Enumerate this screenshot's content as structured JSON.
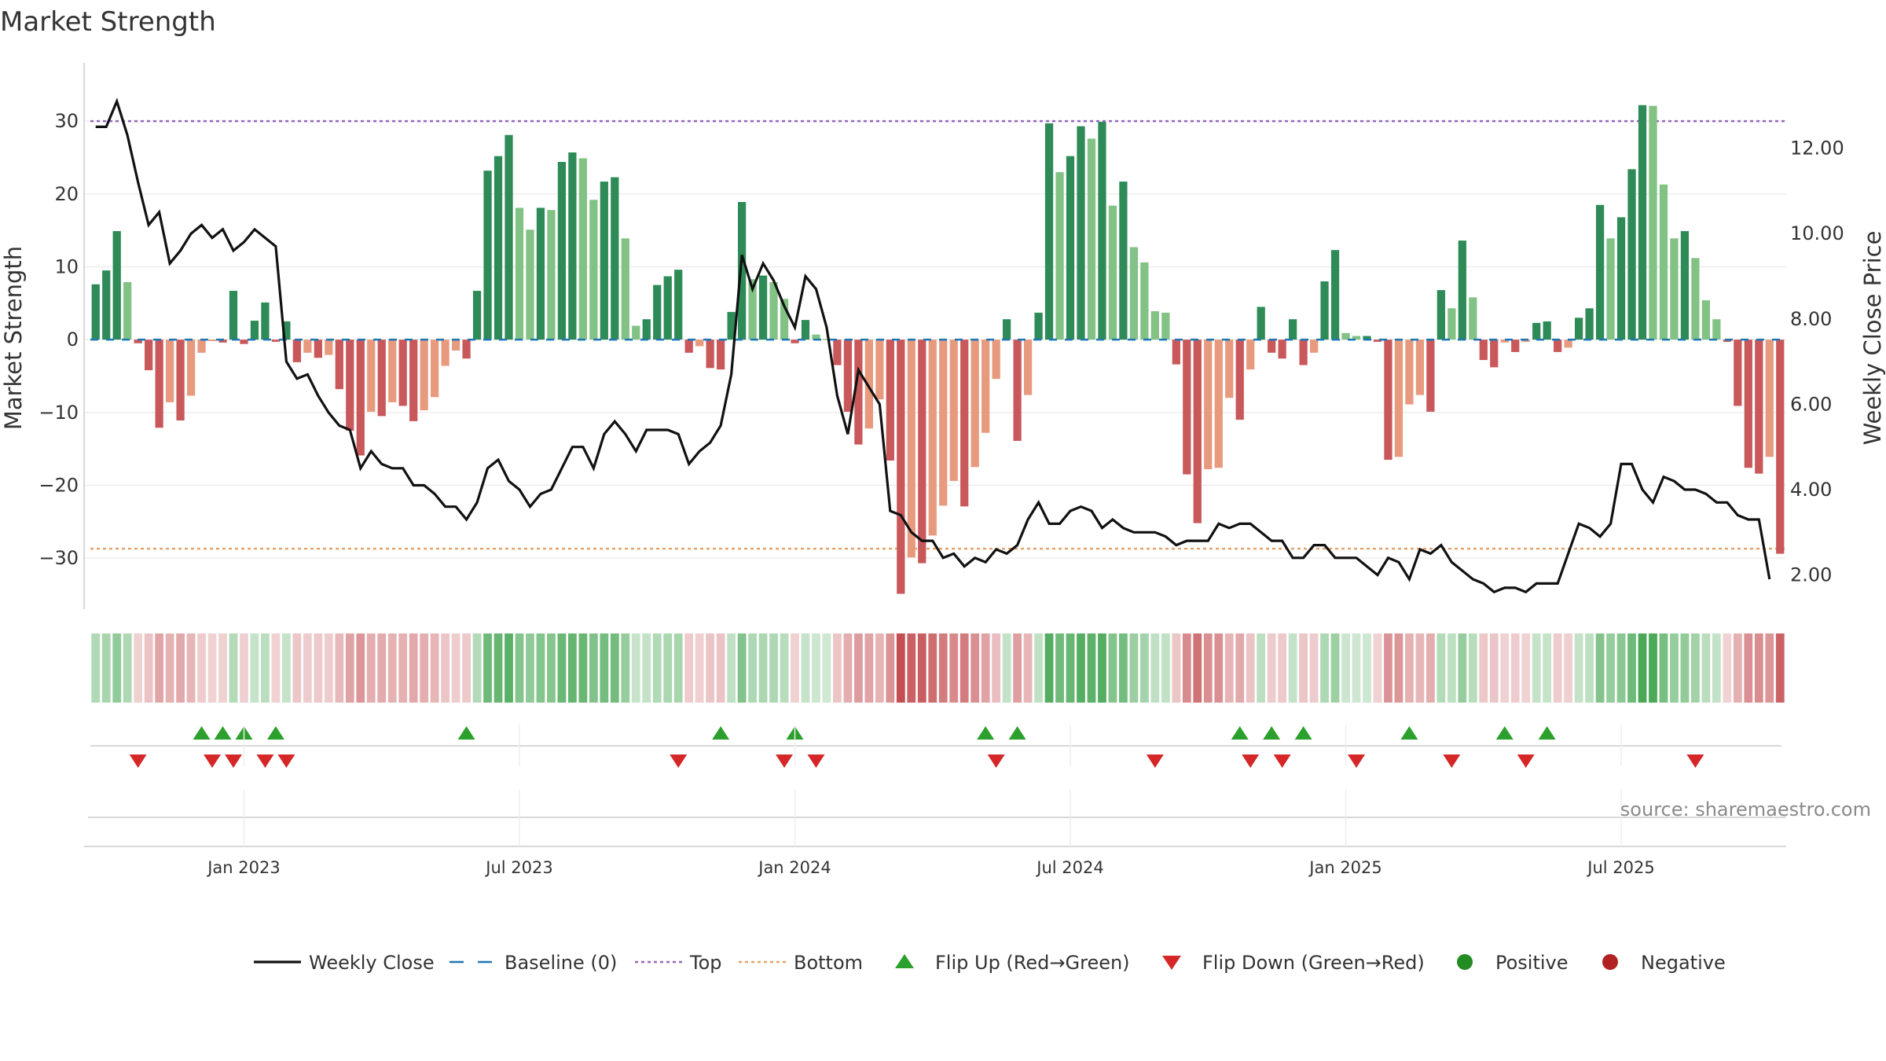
{
  "title": "Market Strength",
  "source": "source: sharemaestro.com",
  "colors": {
    "strong_green": "#2e8b57",
    "light_green": "#82c285",
    "strong_red": "#c9585b",
    "light_red": "#e89a7e",
    "close_line": "#111111",
    "baseline": "#1f77b4",
    "top": "#9467bd",
    "bottom": "#e6a36a",
    "flip_up": "#2ca02c",
    "flip_down": "#d62728",
    "positive": "#228b22",
    "negative": "#b22222"
  },
  "legend": [
    {
      "key": "close",
      "label": "Weekly Close"
    },
    {
      "key": "baseline",
      "label": "Baseline (0)"
    },
    {
      "key": "top",
      "label": "Top"
    },
    {
      "key": "bottom",
      "label": "Bottom"
    },
    {
      "key": "flip_up",
      "label": "Flip Up (Red→Green)"
    },
    {
      "key": "flip_down",
      "label": "Flip Down (Green→Red)"
    },
    {
      "key": "positive",
      "label": "Positive"
    },
    {
      "key": "negative",
      "label": "Negative"
    }
  ],
  "chart_data": {
    "type": "bar",
    "title": "Market Strength",
    "ylabel": "Market Strength",
    "y2label": "Weekly Close Price",
    "ylim": [
      -37,
      38
    ],
    "y2lim": [
      1.2,
      14.0
    ],
    "yticks": [
      30,
      20,
      10,
      0,
      -10,
      -20,
      -30
    ],
    "yticklabels": [
      "30",
      "20",
      "10",
      "0",
      "−10",
      "−20",
      "−30"
    ],
    "y2ticks": [
      12.0,
      10.0,
      8.0,
      6.0,
      4.0,
      2.0
    ],
    "y2ticklabels": [
      "12.00",
      "10.00",
      "8.00",
      "6.00",
      "4.00",
      "2.00"
    ],
    "top_level": 30,
    "bottom_level": -28.7,
    "x_weeks_range": [
      0,
      156
    ],
    "xticks": [
      {
        "label": "Jan 2023",
        "week": 14
      },
      {
        "label": "Jul 2023",
        "week": 40
      },
      {
        "label": "Jan 2024",
        "week": 66
      },
      {
        "label": "Jul 2024",
        "week": 92
      },
      {
        "label": "Jan 2025",
        "week": 118
      },
      {
        "label": "Jul 2025",
        "week": 144
      }
    ],
    "strength": [
      7.6,
      9.5,
      14.9,
      7.9,
      -0.5,
      -4.2,
      -12.1,
      -8.6,
      -11.1,
      -7.7,
      -1.8,
      -0.2,
      -0.4,
      6.7,
      -0.6,
      2.6,
      5.1,
      -0.3,
      2.5,
      -3.1,
      -1.8,
      -2.5,
      -2.1,
      -6.8,
      -12.5,
      -15.9,
      -9.9,
      -10.5,
      -8.6,
      -9.1,
      -11.2,
      -9.7,
      -7.9,
      -3.6,
      -1.5,
      -2.6,
      6.7,
      23.2,
      25.2,
      28.1,
      18.1,
      15.1,
      18.1,
      17.8,
      24.4,
      25.7,
      24.9,
      19.2,
      21.7,
      22.3,
      13.9,
      1.9,
      2.8,
      7.5,
      8.7,
      9.6,
      -1.8,
      -0.9,
      -3.9,
      -4.1,
      3.8,
      18.9,
      8.3,
      8.8,
      7.9,
      5.6,
      -0.5,
      2.7,
      0.7,
      0.1,
      -3.5,
      -9.9,
      -14.4,
      -12.2,
      -8.2,
      -16.6,
      -34.9,
      -29.9,
      -30.7,
      -26.9,
      -22.8,
      -19.4,
      -22.9,
      -17.5,
      -12.8,
      -5.4,
      2.8,
      -13.9,
      -7.6,
      3.7,
      29.7,
      23.0,
      25.2,
      29.3,
      27.6,
      29.9,
      18.4,
      21.7,
      12.7,
      10.6,
      3.9,
      3.7,
      -3.4,
      -18.5,
      -25.2,
      -17.8,
      -17.6,
      -8.0,
      -11.0,
      -4.1,
      4.5,
      -1.8,
      -2.6,
      2.8,
      -3.5,
      -1.8,
      8.0,
      12.3,
      0.9,
      0.5,
      0.5,
      -0.3,
      -16.5,
      -16.1,
      -8.9,
      -7.6,
      -9.9,
      6.8,
      4.3,
      13.6,
      5.8,
      -2.8,
      -3.8,
      -0.4,
      -1.7,
      -0.3,
      2.3,
      2.5,
      -1.7,
      -1.1,
      3.0,
      4.3,
      18.5,
      13.9,
      16.8,
      23.4,
      32.2,
      32.1,
      21.3,
      13.9,
      14.9,
      11.2,
      5.4,
      2.8,
      -0.3,
      -9.1,
      -17.6,
      -18.4,
      -16.1,
      -29.4
    ],
    "weekly_close": [
      12.5,
      12.5,
      13.1,
      12.3,
      11.2,
      10.2,
      10.5,
      9.3,
      9.6,
      10.0,
      10.2,
      9.9,
      10.1,
      9.6,
      9.8,
      10.1,
      9.9,
      9.7,
      7.0,
      6.6,
      6.7,
      6.2,
      5.8,
      5.5,
      5.4,
      4.5,
      4.9,
      4.6,
      4.5,
      4.5,
      4.1,
      4.1,
      3.9,
      3.6,
      3.6,
      3.3,
      3.7,
      4.5,
      4.7,
      4.2,
      4.0,
      3.6,
      3.9,
      4.0,
      4.5,
      5.0,
      5.0,
      4.5,
      5.3,
      5.6,
      5.3,
      4.9,
      5.4,
      5.4,
      5.4,
      5.3,
      4.6,
      4.9,
      5.1,
      5.5,
      6.7,
      9.5,
      8.7,
      9.3,
      8.9,
      8.3,
      7.8,
      9.0,
      8.7,
      7.8,
      6.2,
      5.3,
      6.8,
      6.4,
      6.0,
      3.5,
      3.4,
      3.0,
      2.8,
      2.8,
      2.4,
      2.5,
      2.2,
      2.4,
      2.3,
      2.6,
      2.5,
      2.7,
      3.3,
      3.7,
      3.2,
      3.2,
      3.5,
      3.6,
      3.5,
      3.1,
      3.3,
      3.1,
      3.0,
      3.0,
      3.0,
      2.9,
      2.7,
      2.8,
      2.8,
      2.8,
      3.2,
      3.1,
      3.2,
      3.2,
      3.0,
      2.8,
      2.8,
      2.4,
      2.4,
      2.7,
      2.7,
      2.4,
      2.4,
      2.4,
      2.2,
      2.0,
      2.4,
      2.3,
      1.9,
      2.6,
      2.5,
      2.7,
      2.3,
      2.1,
      1.9,
      1.8,
      1.6,
      1.7,
      1.7,
      1.6,
      1.8,
      1.8,
      1.8,
      2.5,
      3.2,
      3.1,
      2.9,
      3.2,
      4.6,
      4.6,
      4.0,
      3.7,
      4.3,
      4.2,
      4.0,
      4.0,
      3.9,
      3.7,
      3.7,
      3.4,
      3.3,
      3.3,
      1.9
    ],
    "flip_up_weeks": [
      10,
      12,
      14,
      17,
      35,
      59,
      66,
      84,
      87,
      108,
      111,
      114,
      124,
      133,
      137
    ],
    "flip_down_weeks": [
      4,
      11,
      13,
      16,
      18,
      55,
      65,
      68,
      85,
      100,
      109,
      112,
      119,
      128,
      135,
      151
    ]
  }
}
